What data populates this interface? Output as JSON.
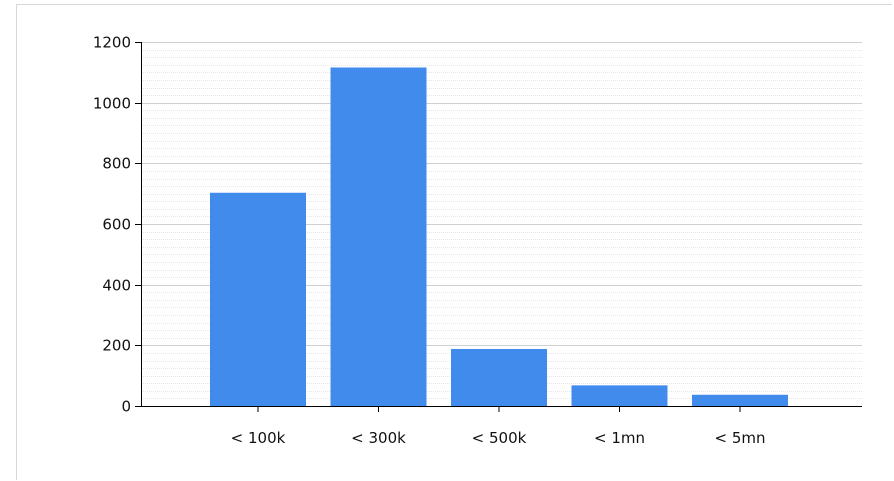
{
  "chart_data": {
    "type": "bar",
    "title": "",
    "xlabel": "",
    "ylabel": "",
    "categories": [
      "< 100k",
      "< 300k",
      "< 500k",
      "< 1mn",
      "< 5mn"
    ],
    "values": [
      703,
      1116,
      188,
      68,
      37
    ],
    "ylim": [
      0,
      1200
    ],
    "yticks": [
      0,
      200,
      400,
      600,
      800,
      1000,
      1200
    ],
    "grid": true,
    "legend": "none",
    "bar_color": "#418bec",
    "grid_color": "#d0d0d0",
    "minor_grid_color": "#e6e6e6"
  }
}
